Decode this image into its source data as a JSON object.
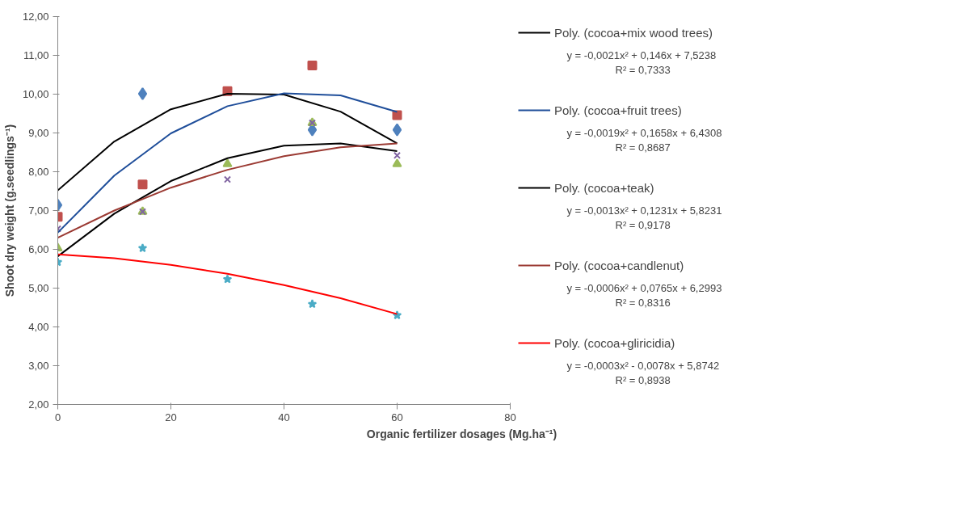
{
  "chart_data": {
    "type": "scatter",
    "xlabel": "Organic fertilizer dosages (Mg.ha⁻¹)",
    "ylabel": "Shoot dry weight (g.seedlings⁻¹)",
    "x": [
      0,
      15,
      30,
      45,
      60
    ],
    "xlim": [
      0,
      80
    ],
    "xticks": [
      0,
      20,
      40,
      60,
      80
    ],
    "ylim": [
      2,
      12
    ],
    "yticks": [
      {
        "value": 2,
        "label": "2,00"
      },
      {
        "value": 3,
        "label": "3,00"
      },
      {
        "value": 4,
        "label": "4,00"
      },
      {
        "value": 5,
        "label": "5,00"
      },
      {
        "value": 6,
        "label": "6,00"
      },
      {
        "value": 7,
        "label": "7,00"
      },
      {
        "value": 8,
        "label": "8,00"
      },
      {
        "value": 9,
        "label": "9,00"
      },
      {
        "value": 10,
        "label": "10,00"
      },
      {
        "value": 11,
        "label": "11,00"
      },
      {
        "value": 12,
        "label": "12,00"
      }
    ],
    "grid": false,
    "legend": "right",
    "series": [
      {
        "color": "#4f81bd",
        "marker": "diamond",
        "values": [
          7.14,
          10.01,
          null,
          9.08,
          9.08
        ]
      },
      {
        "color": "#c0504d",
        "marker": "square",
        "values": [
          6.84,
          7.67,
          10.08,
          10.74,
          9.46
        ]
      },
      {
        "color": "#9bbb59",
        "marker": "triangle",
        "values": [
          6.03,
          6.97,
          8.2,
          9.26,
          8.2
        ]
      },
      {
        "color": "#8064a2",
        "marker": "cross",
        "values": [
          6.53,
          6.97,
          7.8,
          9.26,
          8.42
        ]
      },
      {
        "color": "#4bacc6",
        "marker": "star",
        "values": [
          5.67,
          6.03,
          5.23,
          4.59,
          4.3
        ]
      },
      {
        "type": "line",
        "name": "Poly. (cocoa+mix wood trees)",
        "color": "#000000",
        "x": [
          0,
          10,
          20,
          30,
          40,
          50,
          60
        ],
        "values": [
          7.52,
          8.78,
          9.61,
          10.01,
          9.99,
          9.55,
          8.73
        ]
      },
      {
        "type": "line",
        "name": "Poly. (cocoa+fruit trees)",
        "color": "#1f4e9a",
        "x": [
          0,
          10,
          20,
          30,
          40,
          50,
          60
        ],
        "values": [
          6.43,
          7.9,
          8.99,
          9.69,
          10.02,
          9.97,
          9.54
        ]
      },
      {
        "type": "line",
        "name": "Poly. (cocoa+teak)",
        "color": "#000000",
        "x": [
          0,
          10,
          20,
          30,
          40,
          50,
          60
        ],
        "values": [
          5.82,
          6.92,
          7.76,
          8.35,
          8.67,
          8.73,
          8.53
        ]
      },
      {
        "type": "line",
        "name": "Poly. (cocoa+candlenut)",
        "color": "#9b3a33",
        "x": [
          0,
          10,
          20,
          30,
          40,
          50,
          60
        ],
        "values": [
          6.3,
          7.0,
          7.59,
          8.05,
          8.4,
          8.63,
          8.73
        ]
      },
      {
        "type": "line",
        "name": "Poly. (cocoa+gliricidia)",
        "color": "#ff0000",
        "x": [
          0,
          10,
          20,
          30,
          40,
          50,
          60
        ],
        "values": [
          5.87,
          5.77,
          5.6,
          5.37,
          5.08,
          4.74,
          4.33
        ]
      }
    ],
    "annotations": [
      "y = -0,0021x² + 0,146x + 7,5238",
      "R² = 0,7333",
      "y = -0,0019x² + 0,1658x + 6,4308",
      "R² = 0,8687",
      "y = -0,0013x² + 0,1231x + 5,8231",
      "R² = 0,9178",
      "y = -0,0006x² + 0,0765x + 6,2993",
      "R² = 0,8316",
      "y = -0,0003x² - 0,0078x + 5,8742",
      "R² = 0,8938"
    ]
  }
}
